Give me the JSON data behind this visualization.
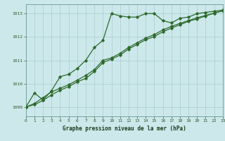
{
  "title": "Graphe pression niveau de la mer (hPa)",
  "background_color": "#cce8ea",
  "grid_color": "#aacccc",
  "line_color": "#2d6a2d",
  "x_min": 0,
  "x_max": 23,
  "y_min": 1008.6,
  "y_max": 1013.4,
  "y_ticks": [
    1009,
    1010,
    1011,
    1012,
    1013
  ],
  "x_ticks": [
    0,
    1,
    2,
    3,
    4,
    5,
    6,
    7,
    8,
    9,
    10,
    11,
    12,
    13,
    14,
    15,
    16,
    17,
    18,
    19,
    20,
    21,
    22,
    23
  ],
  "series1_x": [
    0,
    1,
    2,
    3,
    4,
    5,
    6,
    7,
    8,
    9,
    10,
    11,
    12,
    13,
    14,
    15,
    16,
    17,
    18,
    19,
    20,
    21,
    22,
    23
  ],
  "series1_y": [
    1009.0,
    1009.6,
    1009.3,
    1009.7,
    1010.3,
    1010.4,
    1010.65,
    1011.0,
    1011.55,
    1011.85,
    1013.0,
    1012.9,
    1012.85,
    1012.85,
    1013.0,
    1013.0,
    1012.7,
    1012.6,
    1012.8,
    1012.85,
    1013.0,
    1013.05,
    1013.1,
    1013.15
  ],
  "series2_x": [
    0,
    1,
    2,
    3,
    4,
    5,
    6,
    7,
    8,
    9,
    10,
    11,
    12,
    13,
    14,
    15,
    16,
    17,
    18,
    19,
    20,
    21,
    22,
    23
  ],
  "series2_y": [
    1009.0,
    1009.15,
    1009.4,
    1009.65,
    1009.8,
    1009.95,
    1010.15,
    1010.35,
    1010.6,
    1011.0,
    1011.1,
    1011.3,
    1011.55,
    1011.75,
    1011.95,
    1012.1,
    1012.3,
    1012.45,
    1012.58,
    1012.7,
    1012.82,
    1012.92,
    1013.02,
    1013.12
  ],
  "series3_x": [
    0,
    1,
    2,
    3,
    4,
    5,
    6,
    7,
    8,
    9,
    10,
    11,
    12,
    13,
    14,
    15,
    16,
    17,
    18,
    19,
    20,
    21,
    22,
    23
  ],
  "series3_y": [
    1009.0,
    1009.1,
    1009.28,
    1009.52,
    1009.72,
    1009.87,
    1010.08,
    1010.22,
    1010.52,
    1010.9,
    1011.05,
    1011.22,
    1011.48,
    1011.68,
    1011.88,
    1012.02,
    1012.22,
    1012.38,
    1012.52,
    1012.67,
    1012.77,
    1012.9,
    1013.02,
    1013.12
  ]
}
